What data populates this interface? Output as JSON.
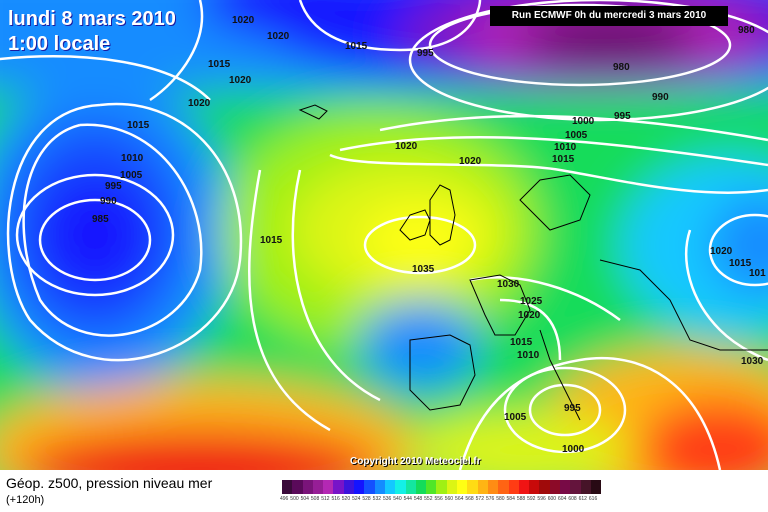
{
  "header": {
    "date_line": "lundi 8 mars 2010",
    "time_line": "1:00 locale",
    "run_label": "Run ECMWF 0h du mercredi 3 mars 2010",
    "copyright": "Copyright 2010 Meteociel.fr"
  },
  "isobars": [
    {
      "id": "l1020a",
      "text": "1020"
    },
    {
      "id": "l1020b",
      "text": "1020"
    },
    {
      "id": "l1015a",
      "text": "1015"
    },
    {
      "id": "l1015b",
      "text": "1015"
    },
    {
      "id": "l1020c",
      "text": "1020"
    },
    {
      "id": "l1020d",
      "text": "1020"
    },
    {
      "id": "l1015c",
      "text": "1015"
    },
    {
      "id": "l1010a",
      "text": "1010"
    },
    {
      "id": "l1005a",
      "text": "1005"
    },
    {
      "id": "l995a",
      "text": "995"
    },
    {
      "id": "l990a",
      "text": "990"
    },
    {
      "id": "l985a",
      "text": "985"
    },
    {
      "id": "l1015d",
      "text": "1015"
    },
    {
      "id": "l995b",
      "text": "995"
    },
    {
      "id": "l980a",
      "text": "980"
    },
    {
      "id": "l980b",
      "text": "980"
    },
    {
      "id": "l990b",
      "text": "990"
    },
    {
      "id": "l995c",
      "text": "995"
    },
    {
      "id": "l1000a",
      "text": "1000"
    },
    {
      "id": "l1005b",
      "text": "1005"
    },
    {
      "id": "l1010b",
      "text": "1010"
    },
    {
      "id": "l1015e",
      "text": "1015"
    },
    {
      "id": "l1020e",
      "text": "1020"
    },
    {
      "id": "l1020f",
      "text": "1020"
    },
    {
      "id": "l1035",
      "text": "1035"
    },
    {
      "id": "l1030a",
      "text": "1030"
    },
    {
      "id": "l1025",
      "text": "1025"
    },
    {
      "id": "l1020g",
      "text": "1020"
    },
    {
      "id": "l1015f",
      "text": "1015"
    },
    {
      "id": "l1010c",
      "text": "1010"
    },
    {
      "id": "l1005c",
      "text": "1005"
    },
    {
      "id": "l995d",
      "text": "995"
    },
    {
      "id": "l1000b",
      "text": "1000"
    },
    {
      "id": "l1020h",
      "text": "1020"
    },
    {
      "id": "l1015g",
      "text": "1015"
    },
    {
      "id": "l1010d",
      "text": "101"
    },
    {
      "id": "l1030b",
      "text": "1030"
    }
  ],
  "legend": {
    "title": "Géop. z500, pression niveau mer",
    "subtitle": "(+120h)",
    "scale": [
      {
        "v": "496",
        "c": "#3a0a3a"
      },
      {
        "v": "500",
        "c": "#5a0a5a"
      },
      {
        "v": "504",
        "c": "#7a147a"
      },
      {
        "v": "508",
        "c": "#961e96"
      },
      {
        "v": "512",
        "c": "#b428b4"
      },
      {
        "v": "516",
        "c": "#7814c8"
      },
      {
        "v": "520",
        "c": "#3c14dc"
      },
      {
        "v": "524",
        "c": "#1414ff"
      },
      {
        "v": "528",
        "c": "#1450ff"
      },
      {
        "v": "532",
        "c": "#148cff"
      },
      {
        "v": "536",
        "c": "#14c8ff"
      },
      {
        "v": "540",
        "c": "#14f0e6"
      },
      {
        "v": "544",
        "c": "#14e6a0"
      },
      {
        "v": "548",
        "c": "#14dc5a"
      },
      {
        "v": "552",
        "c": "#50e628"
      },
      {
        "v": "556",
        "c": "#a0f014"
      },
      {
        "v": "560",
        "c": "#dcf514"
      },
      {
        "v": "564",
        "c": "#ffff14"
      },
      {
        "v": "568",
        "c": "#ffdc14"
      },
      {
        "v": "572",
        "c": "#ffb414"
      },
      {
        "v": "576",
        "c": "#ff8c14"
      },
      {
        "v": "580",
        "c": "#ff6414"
      },
      {
        "v": "584",
        "c": "#ff3c14"
      },
      {
        "v": "588",
        "c": "#f01414"
      },
      {
        "v": "592",
        "c": "#c80a0a"
      },
      {
        "v": "596",
        "c": "#a00a0a"
      },
      {
        "v": "600",
        "c": "#8c0a28"
      },
      {
        "v": "604",
        "c": "#780a46"
      },
      {
        "v": "608",
        "c": "#64143c"
      },
      {
        "v": "612",
        "c": "#461428"
      },
      {
        "v": "616",
        "c": "#280a14"
      }
    ]
  }
}
